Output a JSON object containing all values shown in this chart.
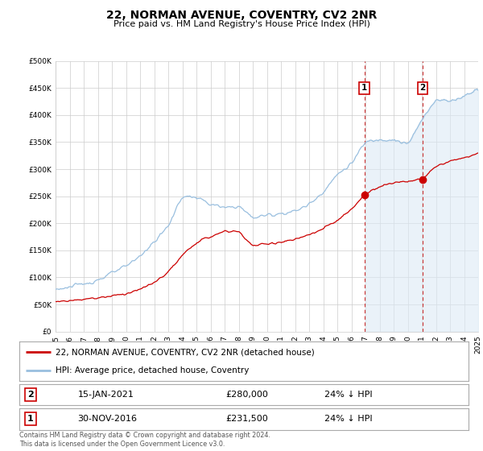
{
  "title": "22, NORMAN AVENUE, COVENTRY, CV2 2NR",
  "subtitle": "Price paid vs. HM Land Registry's House Price Index (HPI)",
  "legend_label1": "22, NORMAN AVENUE, COVENTRY, CV2 2NR (detached house)",
  "legend_label2": "HPI: Average price, detached house, Coventry",
  "hpi_color": "#99bfdf",
  "hpi_fill_color": "#dceaf5",
  "price_color": "#cc0000",
  "annotation_color": "#cc0000",
  "vline_color": "#cc3333",
  "ylim_min": 0,
  "ylim_max": 500000,
  "start_year": 1995,
  "end_year": 2025,
  "ann1_year": 2016.9167,
  "ann2_year": 2021.0417,
  "ann1_price": 231500,
  "ann2_price": 280000,
  "footnote": "Contains HM Land Registry data © Crown copyright and database right 2024.\nThis data is licensed under the Open Government Licence v3.0.",
  "background_color": "#ffffff",
  "grid_color": "#cccccc",
  "key_years_hpi": [
    1995,
    1996,
    1997,
    1998,
    1999,
    2000,
    2001,
    2002,
    2003,
    2004,
    2005,
    2006,
    2007,
    2008,
    2009,
    2010,
    2011,
    2012,
    2013,
    2014,
    2015,
    2016,
    2017,
    2018,
    2019,
    2020,
    2021,
    2022,
    2023,
    2024,
    2025
  ],
  "key_vals_hpi": [
    78000,
    82000,
    88000,
    95000,
    108000,
    120000,
    140000,
    165000,
    195000,
    250000,
    248000,
    235000,
    228000,
    232000,
    210000,
    215000,
    218000,
    222000,
    235000,
    258000,
    290000,
    310000,
    350000,
    355000,
    355000,
    345000,
    390000,
    430000,
    425000,
    435000,
    450000
  ],
  "key_years_price": [
    1995,
    1996,
    1997,
    1998,
    1999,
    2000,
    2001,
    2002,
    2003,
    2004,
    2005,
    2006,
    2007,
    2008,
    2009,
    2010,
    2011,
    2012,
    2013,
    2014,
    2015,
    2016,
    2017,
    2018,
    2019,
    2020,
    2021,
    2022,
    2023,
    2024,
    2025
  ],
  "key_vals_price": [
    55000,
    57000,
    60000,
    62000,
    66000,
    70000,
    78000,
    90000,
    110000,
    140000,
    165000,
    175000,
    185000,
    185000,
    158000,
    162000,
    165000,
    170000,
    178000,
    190000,
    205000,
    225000,
    255000,
    268000,
    275000,
    278000,
    280000,
    305000,
    315000,
    320000,
    330000
  ]
}
